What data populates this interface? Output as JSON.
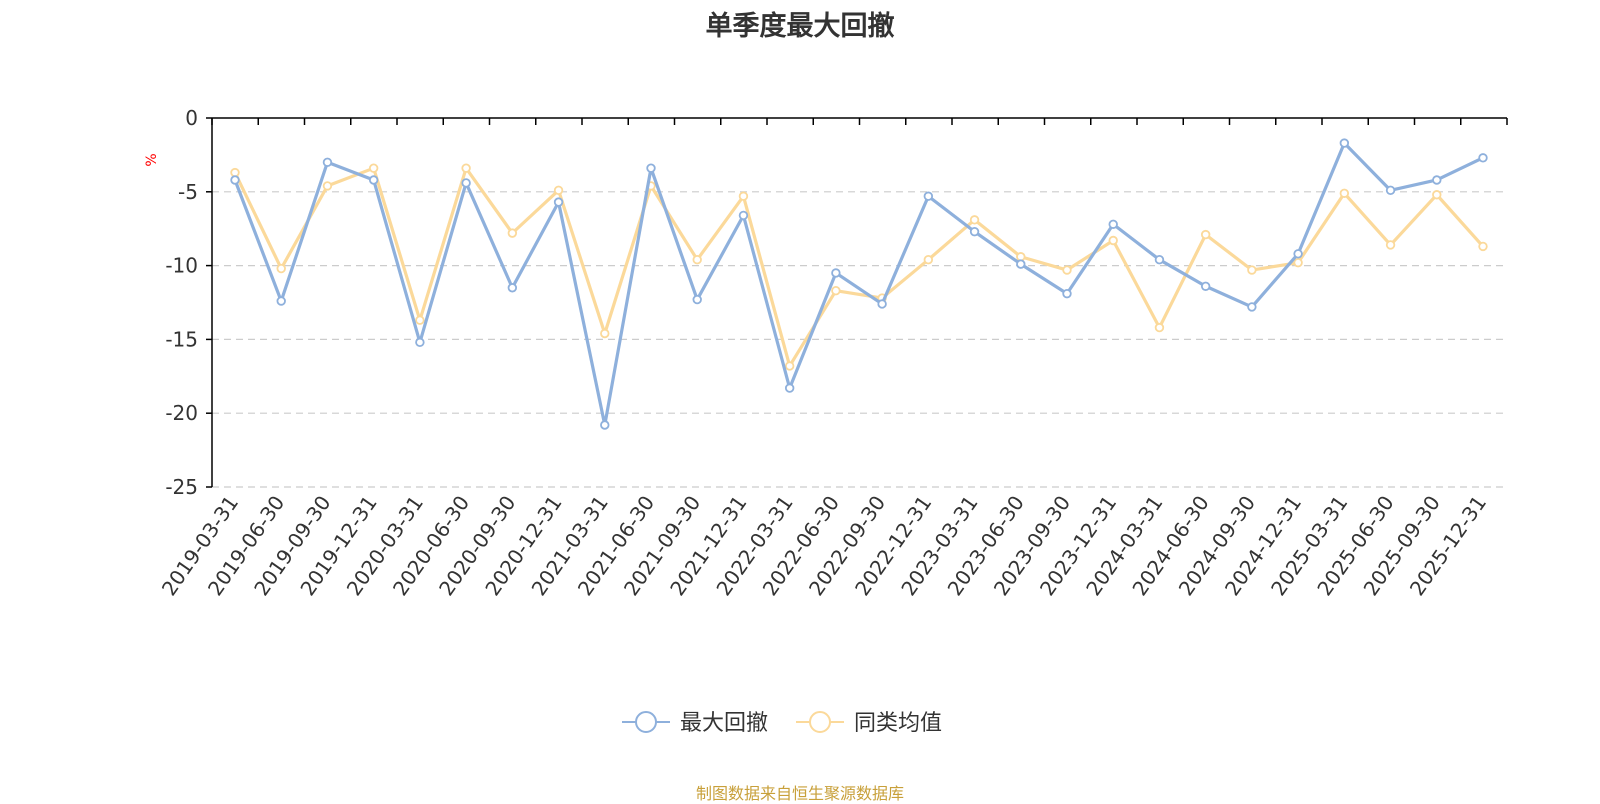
{
  "chart_data": {
    "type": "line",
    "title": "单季度最大回撤",
    "ylabel": "%",
    "xlabel": "",
    "ylim": [
      -25,
      0
    ],
    "yticks": [
      0,
      -5,
      -10,
      -15,
      -20,
      -25
    ],
    "grid": true,
    "legend_position": "bottom",
    "categories": [
      "2019-03-31",
      "2019-06-30",
      "2019-09-30",
      "2019-12-31",
      "2020-03-31",
      "2020-06-30",
      "2020-09-30",
      "2020-12-31",
      "2021-03-31",
      "2021-06-30",
      "2021-09-30",
      "2021-12-31",
      "2022-03-31",
      "2022-06-30",
      "2022-09-30",
      "2022-12-31",
      "2023-03-31",
      "2023-06-30",
      "2023-09-30",
      "2023-12-31",
      "2024-03-31",
      "2024-06-30",
      "2024-09-30",
      "2024-12-31",
      "2025-03-31",
      "2025-06-30",
      "2025-09-30",
      "2025-12-31"
    ],
    "series": [
      {
        "name": "最大回撤",
        "color": "#8eb0dc",
        "values": [
          -4.2,
          -12.4,
          -3.0,
          -4.2,
          -15.2,
          -4.4,
          -11.5,
          -5.7,
          -20.8,
          -3.4,
          -12.3,
          -6.6,
          -18.3,
          -10.5,
          -12.6,
          -5.3,
          -7.7,
          -9.9,
          -11.9,
          -7.2,
          -9.6,
          -11.4,
          -12.8,
          -9.2,
          -1.7,
          -4.9,
          -4.2,
          -2.7
        ]
      },
      {
        "name": "同类均值",
        "color": "#fbd99a",
        "values": [
          -3.7,
          -10.2,
          -4.6,
          -3.4,
          -13.7,
          -3.4,
          -7.8,
          -4.9,
          -14.6,
          -4.6,
          -9.6,
          -5.3,
          -16.8,
          -11.7,
          -12.2,
          -9.6,
          -6.9,
          -9.4,
          -10.3,
          -8.3,
          -14.2,
          -7.9,
          -10.3,
          -9.8,
          -5.1,
          -8.6,
          -5.2,
          -8.7
        ]
      }
    ]
  },
  "source_note": "制图数据来自恒生聚源数据库",
  "colors": {
    "axis": "#000000",
    "grid": "#cccccc",
    "unit": "#ff0000",
    "source": "#c8a03a"
  }
}
